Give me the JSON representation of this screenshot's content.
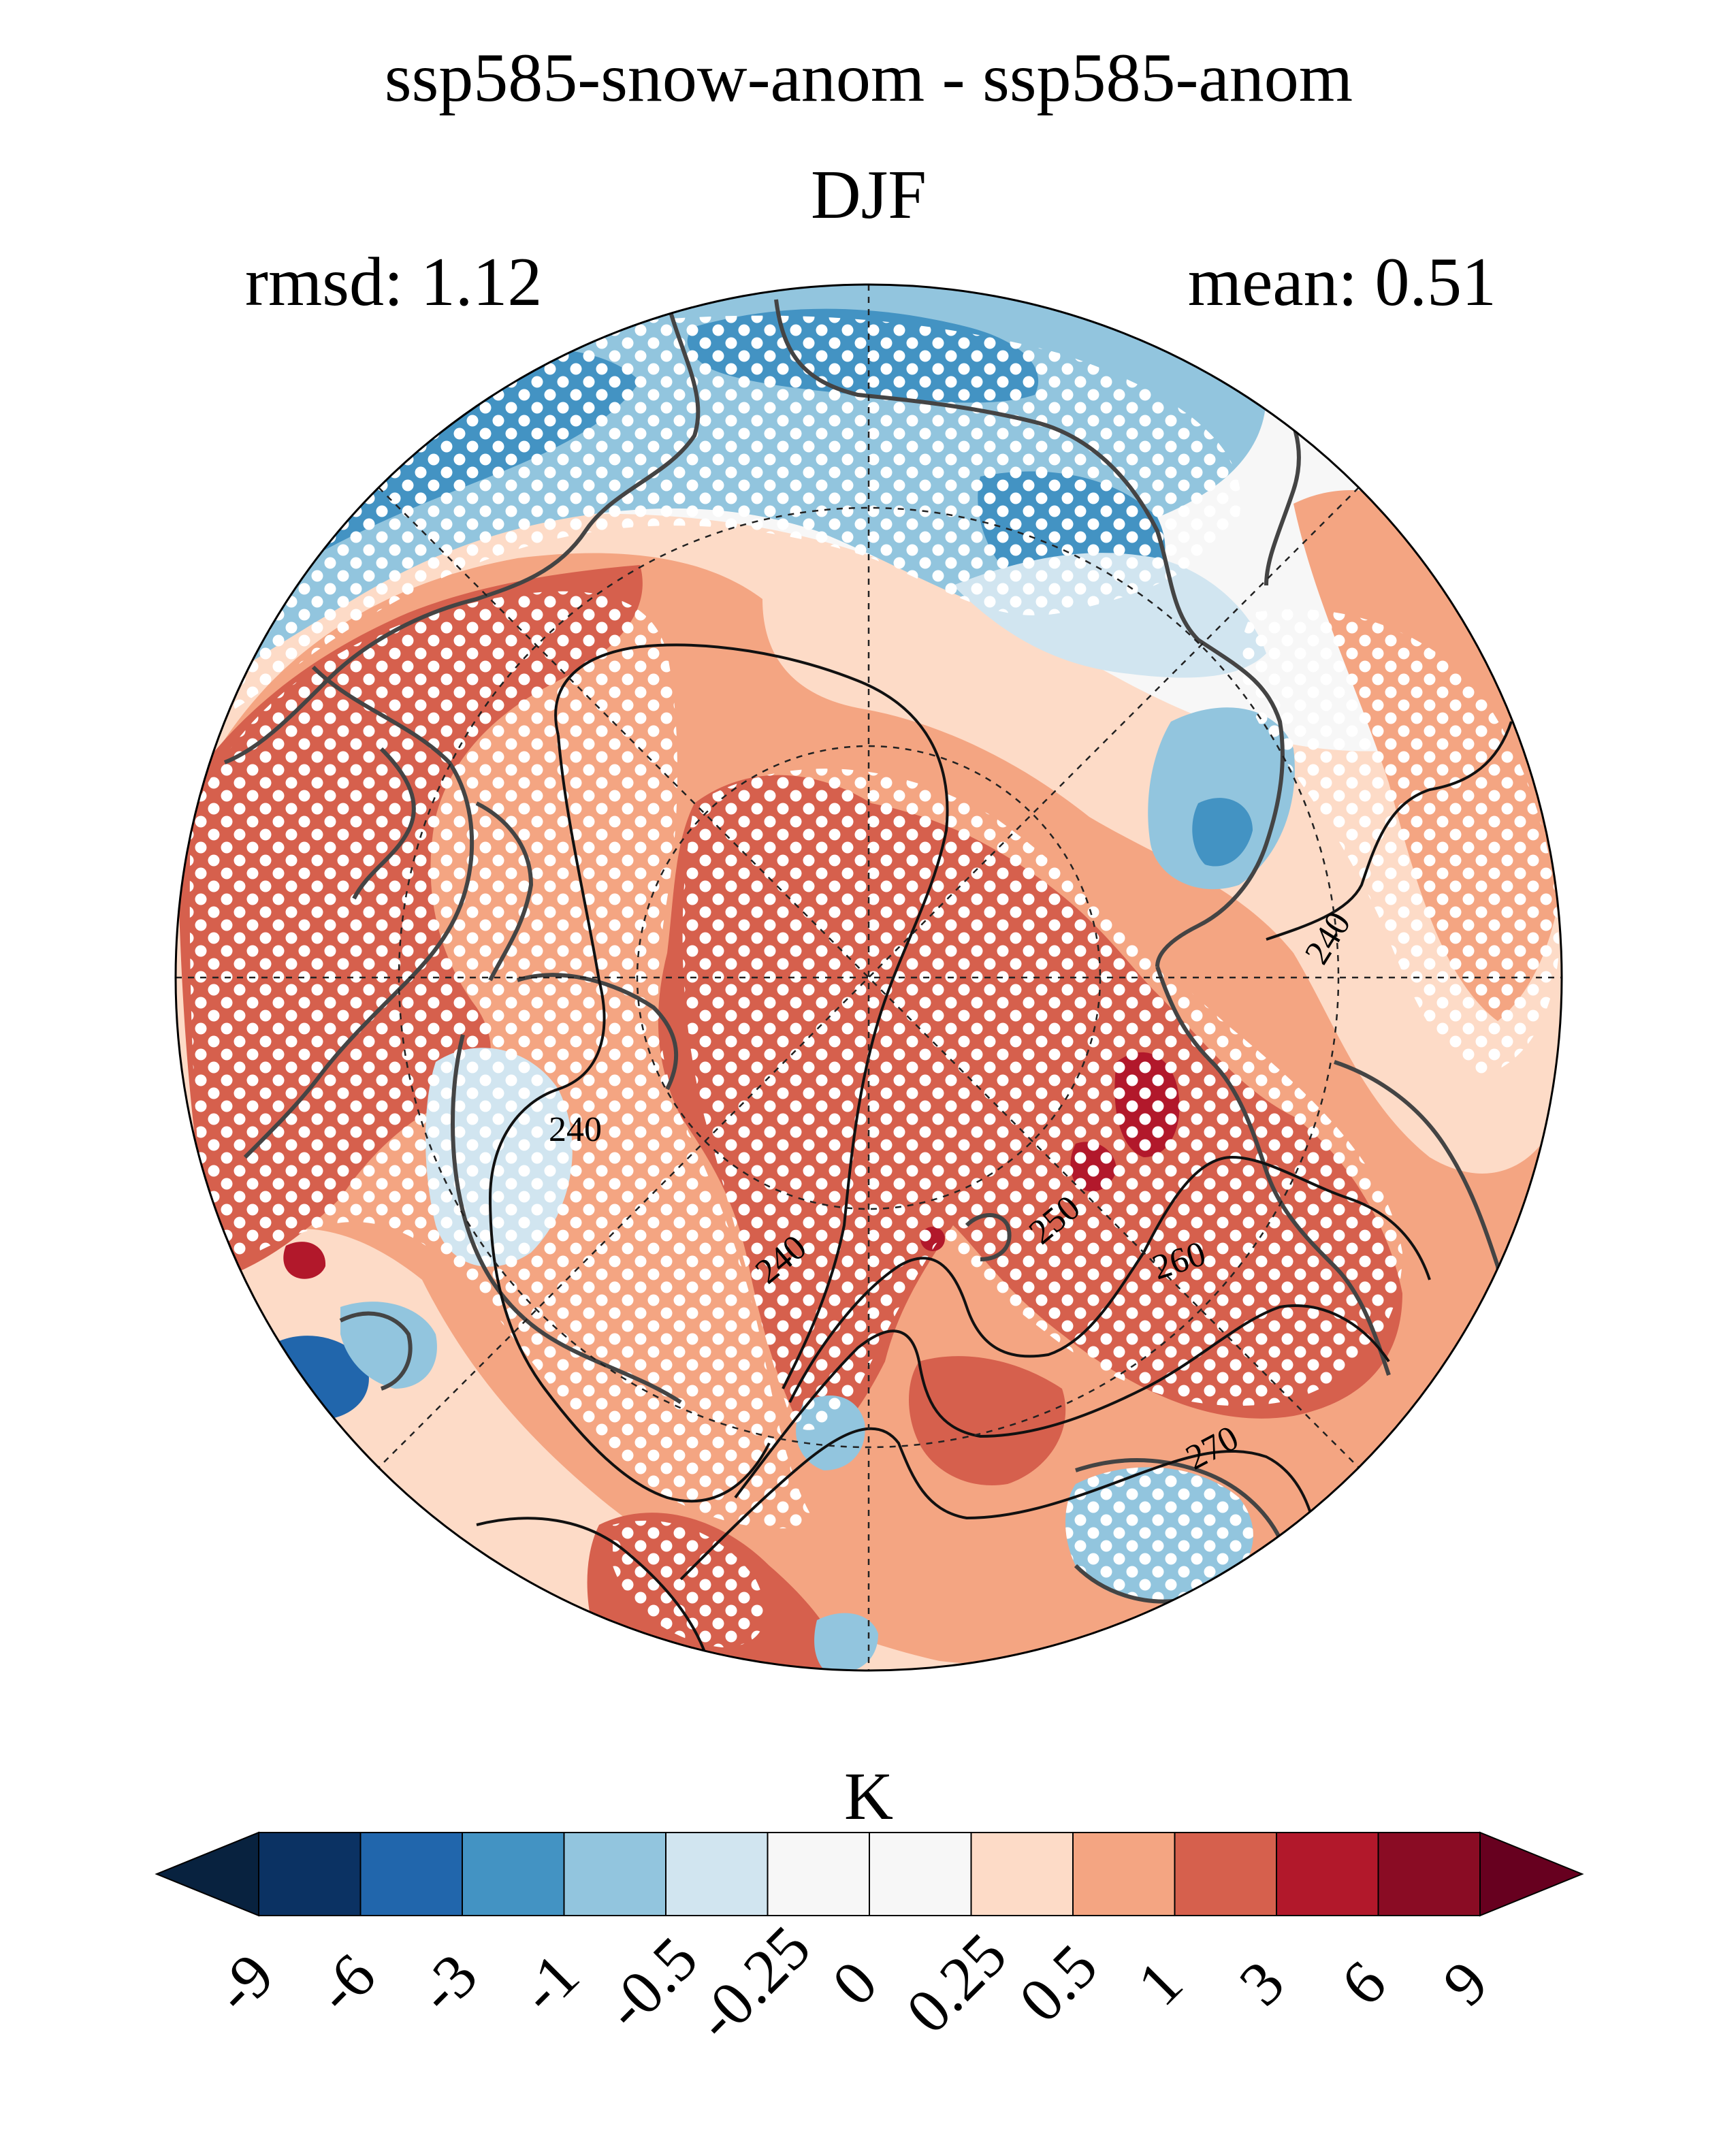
{
  "title": {
    "line1": "ssp585-snow-anom - ssp585-anom",
    "season": "DJF",
    "rmsd": "rmsd: 1.12",
    "mean": "mean: 0.51"
  },
  "map": {
    "projection": "north-polar-stereographic",
    "contour_labels": [
      "240",
      "240",
      "240",
      "250",
      "260",
      "270"
    ],
    "stippling": "white dots mark significant regions"
  },
  "colorbar": {
    "unit_label": "K",
    "extend": "both",
    "tick_labels": [
      "-9",
      "-6",
      "-3",
      "-1",
      "-0.5",
      "-0.25",
      "0",
      "0.25",
      "0.5",
      "1",
      "3",
      "6",
      "9"
    ],
    "colors": {
      "under": "#08223f",
      "bins": [
        "#0b3263",
        "#2166ac",
        "#4393c3",
        "#92c5de",
        "#d1e5f0",
        "#f7f7f7",
        "#f7f7f7",
        "#fddbc7",
        "#f4a582",
        "#d6604d",
        "#b2182b",
        "#8a0c24"
      ],
      "over": "#67001f"
    }
  }
}
